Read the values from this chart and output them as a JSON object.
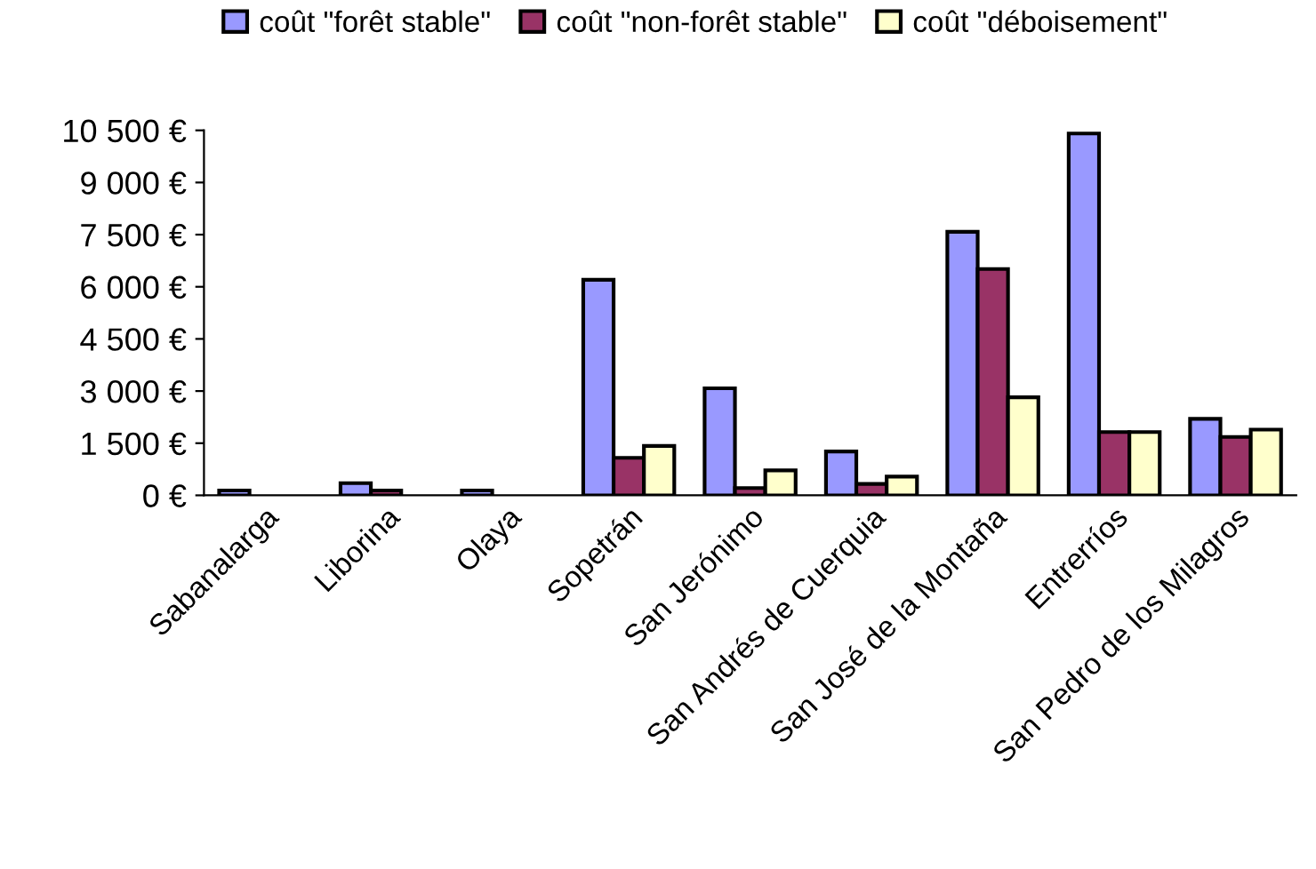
{
  "chart_data": {
    "type": "bar",
    "categories": [
      "Sabanalarga",
      "Liborina",
      "Olaya",
      "Sopetrán",
      "San Jerónimo",
      "San Andrés de Cuerquia",
      "San José de la Montaña",
      "Entrerríos",
      "San Pedro de los Milagros"
    ],
    "series": [
      {
        "name": "coût \"forêt stable\"",
        "color": "#9999ff",
        "values": [
          140,
          350,
          140,
          6200,
          3080,
          1260,
          7580,
          10410,
          2200
        ]
      },
      {
        "name": "coût \"non-forêt stable\"",
        "color": "#993366",
        "values": [
          null,
          140,
          null,
          1080,
          210,
          330,
          6510,
          1820,
          1680
        ]
      },
      {
        "name": "coût \"déboisement\"",
        "color": "#ffffcc",
        "values": [
          null,
          null,
          null,
          1420,
          720,
          540,
          2820,
          1820,
          1890
        ]
      }
    ],
    "ylim": [
      0,
      10500
    ],
    "yticks": [
      {
        "value": 0,
        "label": "0 €"
      },
      {
        "value": 1500,
        "label": "1 500 €"
      },
      {
        "value": 3000,
        "label": "3 000 €"
      },
      {
        "value": 4500,
        "label": "4 500 €"
      },
      {
        "value": 6000,
        "label": "6 000 €"
      },
      {
        "value": 7500,
        "label": "7 500 €"
      },
      {
        "value": 9000,
        "label": "9 000 €"
      },
      {
        "value": 10500,
        "label": "10 500 €"
      }
    ],
    "grid": false,
    "legend": "top"
  }
}
